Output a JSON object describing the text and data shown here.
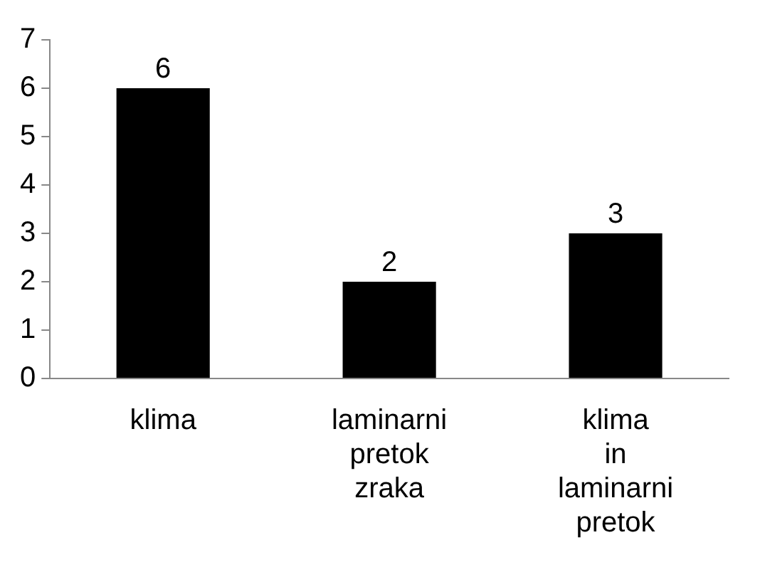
{
  "chart_data": {
    "type": "bar",
    "categories": [
      "klima",
      "laminarni pretok zraka",
      "klima in laminarni pretok"
    ],
    "values": [
      6,
      2,
      3
    ],
    "color": "#000000",
    "ylim": [
      0,
      7
    ],
    "yticks": [
      0,
      1,
      2,
      3,
      4,
      5,
      6,
      7
    ],
    "grid": false,
    "data_labels": true
  }
}
